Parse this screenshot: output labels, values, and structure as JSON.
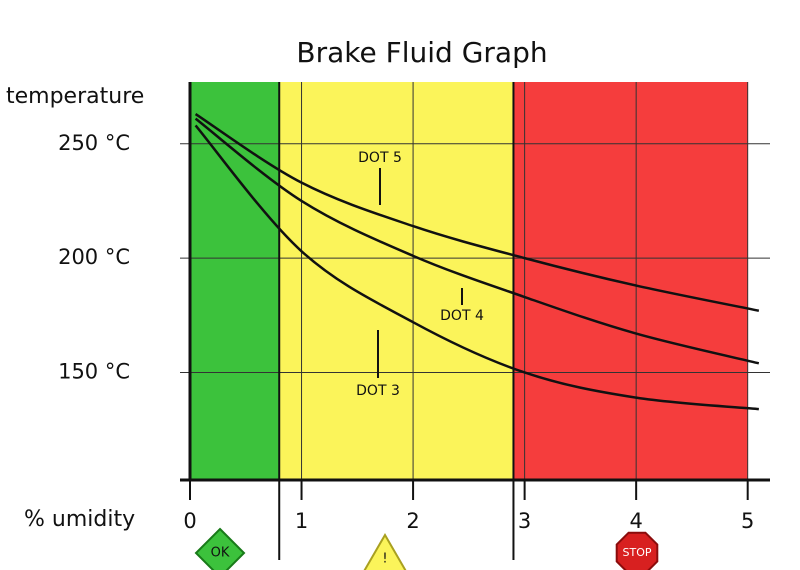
{
  "chart_data": {
    "type": "line",
    "title": "Brake Fluid Graph",
    "y_label": "temperature",
    "x_label": "% umidity",
    "xlim": [
      0,
      5.2
    ],
    "ylim": [
      103,
      277
    ],
    "xticks": [
      0,
      1,
      2,
      3,
      4,
      5
    ],
    "yticks": [
      {
        "value": 150,
        "label": "150 °C"
      },
      {
        "value": 200,
        "label": "200 °C"
      },
      {
        "value": 250,
        "label": "250 °C"
      }
    ],
    "grid": true,
    "x": [
      0.05,
      1,
      2,
      3,
      4,
      5.1
    ],
    "series": [
      {
        "name": "DOT 5",
        "color": "#111111",
        "values": [
          263,
          233,
          214,
          200,
          188,
          177
        ]
      },
      {
        "name": "DOT 4",
        "color": "#111111",
        "values": [
          261,
          225,
          201,
          183,
          167,
          154
        ]
      },
      {
        "name": "DOT 3",
        "color": "#111111",
        "values": [
          258,
          203,
          172,
          150,
          139,
          134
        ]
      }
    ],
    "zones": [
      {
        "from": 0,
        "to": 0.8,
        "color": "#3cc23c",
        "label": "OK"
      },
      {
        "from": 0.8,
        "to": 2.9,
        "color": "#fbf45a",
        "label": "!"
      },
      {
        "from": 2.9,
        "to": 5,
        "color": "#f53d3d",
        "label": "STOP"
      }
    ]
  }
}
